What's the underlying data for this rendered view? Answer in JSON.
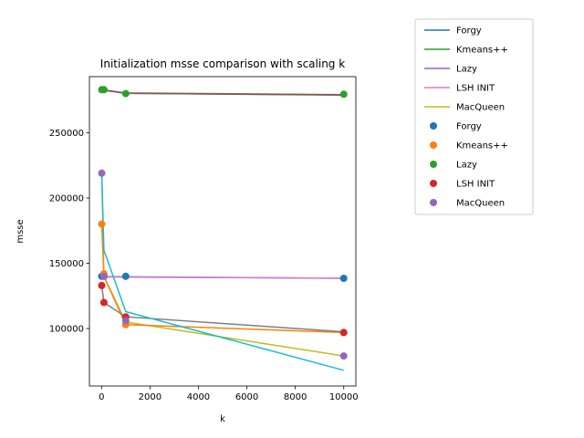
{
  "chart_data": {
    "type": "line",
    "title": "Initialization msse comparison with scaling k",
    "xlabel": "k",
    "ylabel": "msse",
    "xlim": [
      -500,
      10500
    ],
    "ylim": [
      56000,
      293000
    ],
    "xticks": [
      0,
      2000,
      4000,
      6000,
      8000,
      10000
    ],
    "xtick_labels": [
      "0",
      "2000",
      "4000",
      "6000",
      "8000",
      "10000"
    ],
    "yticks": [
      100000,
      150000,
      200000,
      250000
    ],
    "ytick_labels": [
      "100000",
      "150000",
      "200000",
      "250000"
    ],
    "grid": false,
    "legend_position": "outside-right",
    "line_series": [
      {
        "name": "Forgy",
        "color": "#1f77b4",
        "x": [
          10,
          100,
          1000,
          10000
        ],
        "y": [
          140000,
          139800,
          139600,
          138500
        ]
      },
      {
        "name": "Kmeans++",
        "color": "#2ca02c",
        "x": [
          10,
          100,
          1000,
          10000
        ],
        "y": [
          283000,
          282800,
          280500,
          279200
        ]
      },
      {
        "name": "Lazy",
        "color": "#9467bd",
        "x": [
          10,
          100,
          1000,
          10000
        ],
        "y": [
          283000,
          282600,
          280200,
          278800
        ]
      },
      {
        "name": "LSH INIT",
        "color": "#e377c2",
        "x": [
          10,
          100,
          1000,
          10000
        ],
        "y": [
          139800,
          139500,
          139400,
          138600
        ]
      },
      {
        "name": "MacQueen",
        "color": "#bcbd22",
        "x": [
          10,
          100,
          1000,
          10000
        ],
        "y": [
          219000,
          140000,
          105000,
          79000
        ]
      },
      {
        "name": "",
        "color": "#ff7f0e",
        "x": [
          10,
          100,
          1000,
          10000
        ],
        "y": [
          180000,
          140000,
          103000,
          97000
        ]
      },
      {
        "name": "",
        "color": "#7f7f7f",
        "x": [
          10,
          100,
          1000,
          10000
        ],
        "y": [
          133000,
          120000,
          109000,
          97500
        ]
      },
      {
        "name": "",
        "color": "#17becf",
        "x": [
          10,
          100,
          1000,
          10000
        ],
        "y": [
          219000,
          160000,
          113000,
          68000
        ]
      },
      {
        "name": "",
        "color": "#8c564b",
        "x": [
          10,
          100,
          1000,
          10000
        ],
        "y": [
          283000,
          282500,
          280300,
          279000
        ]
      }
    ],
    "scatter_series": [
      {
        "name": "Forgy",
        "color": "#1f77b4",
        "x": [
          10,
          100,
          1000,
          10000
        ],
        "y": [
          140000,
          140000,
          140000,
          138500
        ]
      },
      {
        "name": "Kmeans++",
        "color": "#ff7f0e",
        "x": [
          10,
          100,
          1000,
          10000
        ],
        "y": [
          180000,
          142000,
          103000,
          97000
        ]
      },
      {
        "name": "Lazy",
        "color": "#2ca02c",
        "x": [
          10,
          100,
          1000,
          10000
        ],
        "y": [
          283000,
          283000,
          280000,
          279500
        ]
      },
      {
        "name": "LSH INIT",
        "color": "#d62728",
        "x": [
          10,
          100,
          1000,
          10000
        ],
        "y": [
          133000,
          120000,
          109000,
          97000
        ]
      },
      {
        "name": "MacQueen",
        "color": "#9467bd",
        "x": [
          10,
          100,
          1000,
          10000
        ],
        "y": [
          219000,
          140000,
          106000,
          79000
        ]
      }
    ]
  }
}
